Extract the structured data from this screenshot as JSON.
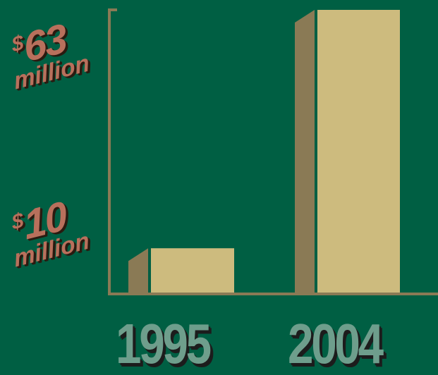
{
  "chart_data": {
    "type": "bar",
    "categories": [
      "1995",
      "2004"
    ],
    "values": [
      10,
      63
    ],
    "y_labels": [
      {
        "currency": "$",
        "number": "63",
        "unit": "million",
        "value": 63
      },
      {
        "currency": "$",
        "number": "10",
        "unit": "million",
        "value": 10
      }
    ],
    "ylim": [
      0,
      63
    ],
    "grid": false,
    "legend": "none"
  },
  "colors": {
    "background": "#005F43",
    "bar_front": "#CDBB7E",
    "bar_side": "#8A7A55",
    "axis": "#8A7A55",
    "value_label": "#B8705C",
    "category_label": "#6E9E8C"
  }
}
